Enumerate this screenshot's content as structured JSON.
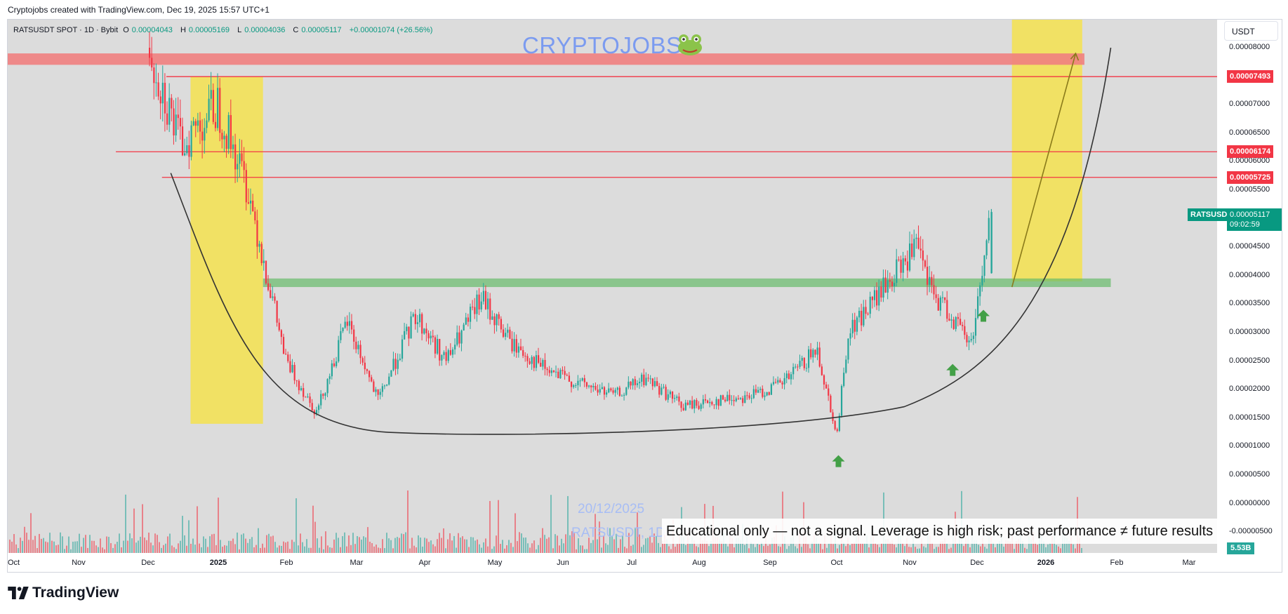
{
  "header": {
    "credit": "Cryptojobs created with TradingView.com, Dec 19, 2025 15:57 UTC+1"
  },
  "legend": {
    "symbol": "RATSUSDT SPOT · 1D · Bybit",
    "open_label": "O",
    "open": "0.00004043",
    "high_label": "H",
    "high": "0.00005169",
    "low_label": "L",
    "low": "0.00004036",
    "close_label": "C",
    "close": "0.00005117",
    "change": "+0.00001074 (+26.56%)"
  },
  "watermark": {
    "title": "CRYPTOJOBS",
    "date": "20/12/2025",
    "symbol": "RATSUSDT, 1D"
  },
  "disclaimer": "Educational only — not a signal. Leverage is high risk; past performance ≠ future results",
  "currency": "USDT",
  "price_scale": {
    "ticks": [
      "0.00008000",
      "0.00007500",
      "0.00007000",
      "0.00006500",
      "0.00006000",
      "0.00005500",
      "0.00005000",
      "0.00004500",
      "0.00004000",
      "0.00003500",
      "0.00003000",
      "0.00002500",
      "0.00002000",
      "0.00001500",
      "0.00001000",
      "0.00000500",
      "0.00000000",
      "-0.00000500"
    ],
    "level_tags": [
      "0.00007493",
      "0.00006174",
      "0.00005725"
    ],
    "symbol_tag": "RATSUSDT",
    "last_price": "0.00005117",
    "countdown": "09:02:59",
    "volume_tag": "5.53B"
  },
  "time_scale": {
    "ticks": [
      "Oct",
      "Nov",
      "Dec",
      "2025",
      "Feb",
      "Mar",
      "Apr",
      "May",
      "Jun",
      "Jul",
      "Aug",
      "Sep",
      "Oct",
      "Nov",
      "Dec",
      "2026",
      "Feb",
      "Mar"
    ]
  },
  "brand": {
    "name": "TradingView"
  },
  "colors": {
    "up": "#26a69a",
    "down": "#f23645",
    "resistance": "#f23645",
    "support_zone": "#66bb6a",
    "highlight_zone": "#f5e24f",
    "curve": "#333333",
    "target_arrow": "#8a7a1a"
  },
  "chart_data": {
    "type": "candlestick",
    "title": "RATSUSDT SPOT · 1D · Bybit",
    "ylim": [
      -7e-06,
      8.85e-05
    ],
    "x": [
      "2024-12-01",
      "2024-12-15",
      "2025-01-01",
      "2025-01-15",
      "2025-02-01",
      "2025-02-15",
      "2025-03-01",
      "2025-03-15",
      "2025-04-01",
      "2025-04-15",
      "2025-05-01",
      "2025-05-15",
      "2025-06-01",
      "2025-06-15",
      "2025-07-01",
      "2025-07-15",
      "2025-08-01",
      "2025-08-15",
      "2025-09-01",
      "2025-09-15",
      "2025-10-01",
      "2025-10-10",
      "2025-10-15",
      "2025-11-01",
      "2025-11-15",
      "2025-11-22",
      "2025-12-01",
      "2025-12-10",
      "2025-12-19"
    ],
    "close": [
      8e-05,
      6.3e-05,
      7e-05,
      5.5e-05,
      2.5e-05,
      1.6e-05,
      3.2e-05,
      1.8e-05,
      3.3e-05,
      2.5e-05,
      3.6e-05,
      2.8e-05,
      2.3e-05,
      2.1e-05,
      1.9e-05,
      2.2e-05,
      1.7e-05,
      1.8e-05,
      1.9e-05,
      2.1e-05,
      2.7e-05,
      1.2e-05,
      3e-05,
      3.8e-05,
      4.5e-05,
      3.7e-05,
      3.3e-05,
      2.8e-05,
      5.117e-05
    ],
    "last": {
      "open": 4.043e-05,
      "high": 5.169e-05,
      "low": 4.036e-05,
      "close": 5.117e-05,
      "change": 1.074e-05,
      "change_pct": 26.56
    },
    "annotations": {
      "resistance_levels": [
        7.493e-05,
        6.174e-05,
        5.725e-05
      ],
      "top_zone": [
        7.7e-05,
        7.9e-05
      ],
      "support_zone": [
        3.8e-05,
        3.95e-05
      ],
      "highlight_zones": [
        {
          "from": "2024-12-20",
          "to": "2025-01-22"
        },
        {
          "from": "2025-12-29",
          "to": "2026-01-30"
        }
      ],
      "rounded_bottom_curve": true,
      "target_arrow": {
        "from": 3.8e-05,
        "to": 7.9e-05
      },
      "buy_arrows": [
        "2025-10-11",
        "2025-12-02",
        "2025-12-16"
      ]
    }
  }
}
